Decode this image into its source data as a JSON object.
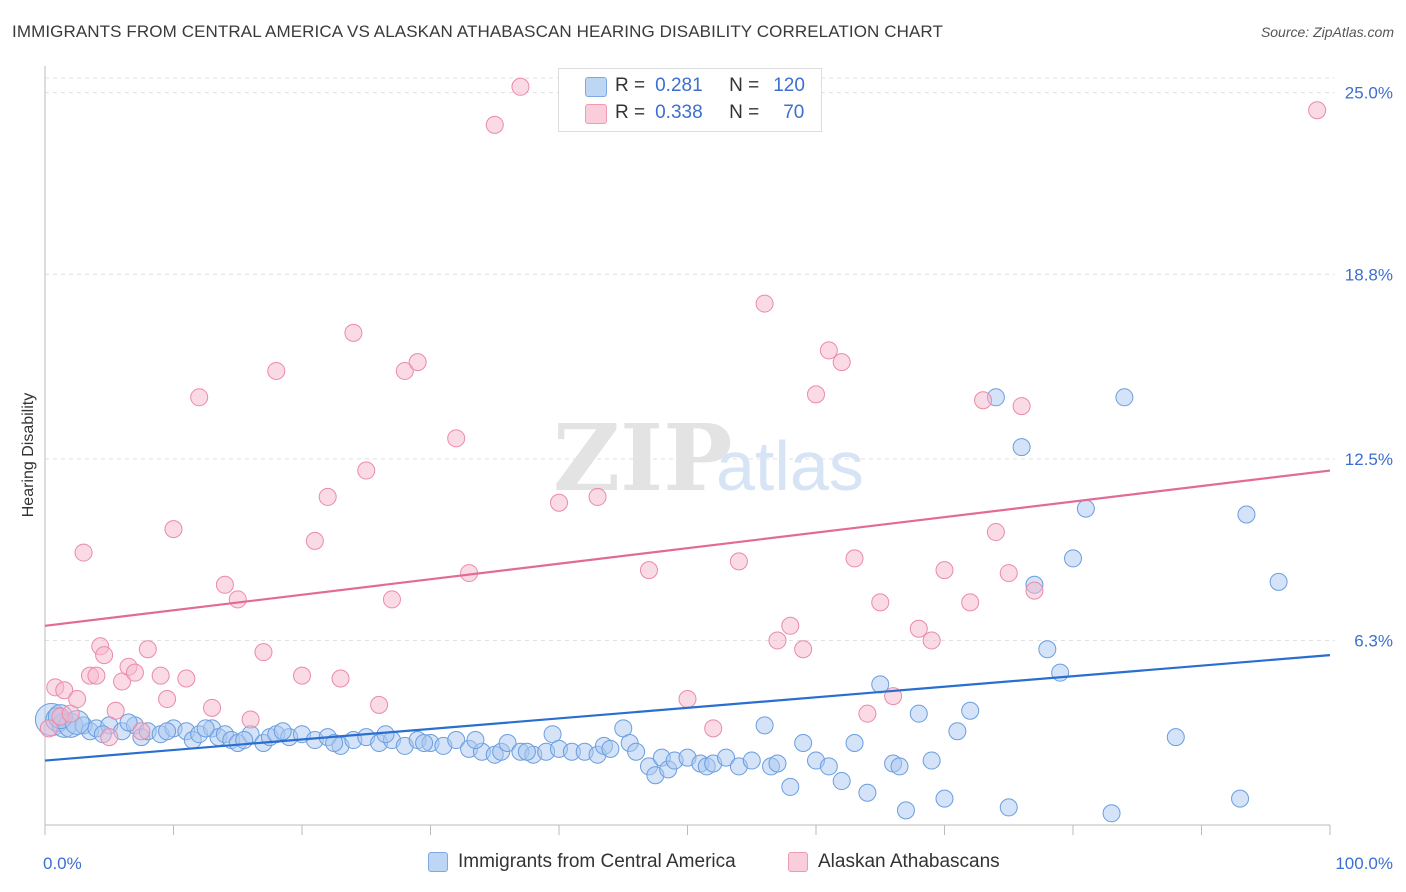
{
  "title": "IMMIGRANTS FROM CENTRAL AMERICA VS ALASKAN ATHABASCAN HEARING DISABILITY CORRELATION CHART",
  "source": "Source: ZipAtlas.com",
  "watermark": {
    "zip": "ZIP",
    "atlas": "atlas"
  },
  "legend_top": {
    "rows": [
      {
        "r_label": "R =",
        "r_value": "0.281",
        "n_label": "N =",
        "n_value": "120",
        "color": "#a9c8f0"
      },
      {
        "r_label": "R =",
        "r_value": "0.338",
        "n_label": "N =",
        "n_value": "70",
        "color": "#f6b8cb"
      }
    ]
  },
  "legend_bottom": [
    {
      "label": "Immigrants from Central America",
      "color": "#a9c8f0"
    },
    {
      "label": "Alaskan Athabascans",
      "color": "#f6b8cb"
    }
  ],
  "chart_data": {
    "type": "scatter",
    "title": "IMMIGRANTS FROM CENTRAL AMERICA VS ALASKAN ATHABASCAN HEARING DISABILITY CORRELATION CHART",
    "xlabel": "",
    "ylabel": "Hearing Disability",
    "xlim": [
      0,
      100
    ],
    "ylim": [
      0,
      25.5
    ],
    "x_tick_labels": [
      "0.0%",
      "100.0%"
    ],
    "y_ticks": [
      6.3,
      12.5,
      18.8,
      25.0
    ],
    "y_tick_labels": [
      "6.3%",
      "12.5%",
      "18.8%",
      "25.0%"
    ],
    "grid": "horizontal dashed",
    "legend_position": "top-center",
    "series": [
      {
        "name": "Immigrants from Central America",
        "color": "#a9c8f0",
        "edge": "#6a9ee0",
        "trend_color": "#2a6fcf",
        "trend": {
          "x0": 0,
          "y0": 2.2,
          "x1": 100,
          "y1": 5.8
        },
        "points": [
          [
            0.5,
            3.6
          ],
          [
            1,
            3.6
          ],
          [
            1.5,
            3.4
          ],
          [
            2,
            3.4
          ],
          [
            3,
            3.4
          ],
          [
            3.5,
            3.2
          ],
          [
            4,
            3.3
          ],
          [
            5,
            3.4
          ],
          [
            6,
            3.2
          ],
          [
            7,
            3.4
          ],
          [
            7.5,
            3.0
          ],
          [
            8,
            3.2
          ],
          [
            9,
            3.1
          ],
          [
            10,
            3.3
          ],
          [
            11,
            3.2
          ],
          [
            11.5,
            2.9
          ],
          [
            12,
            3.1
          ],
          [
            13,
            3.3
          ],
          [
            13.5,
            3.0
          ],
          [
            14,
            3.1
          ],
          [
            14.5,
            2.9
          ],
          [
            15,
            2.8
          ],
          [
            16,
            3.1
          ],
          [
            17,
            2.8
          ],
          [
            17.5,
            3.0
          ],
          [
            18,
            3.1
          ],
          [
            19,
            3.0
          ],
          [
            20,
            3.1
          ],
          [
            21,
            2.9
          ],
          [
            22,
            3.0
          ],
          [
            23,
            2.7
          ],
          [
            24,
            2.9
          ],
          [
            25,
            3.0
          ],
          [
            26,
            2.8
          ],
          [
            27,
            2.9
          ],
          [
            28,
            2.7
          ],
          [
            29,
            2.9
          ],
          [
            30,
            2.8
          ],
          [
            31,
            2.7
          ],
          [
            32,
            2.9
          ],
          [
            33,
            2.6
          ],
          [
            34,
            2.5
          ],
          [
            35,
            2.4
          ],
          [
            35.5,
            2.5
          ],
          [
            36,
            2.8
          ],
          [
            37,
            2.5
          ],
          [
            38,
            2.4
          ],
          [
            39,
            2.5
          ],
          [
            39.5,
            3.1
          ],
          [
            40,
            2.6
          ],
          [
            41,
            2.5
          ],
          [
            42,
            2.5
          ],
          [
            43,
            2.4
          ],
          [
            43.5,
            2.7
          ],
          [
            44,
            2.6
          ],
          [
            45,
            3.3
          ],
          [
            45.5,
            2.8
          ],
          [
            46,
            2.5
          ],
          [
            47,
            2.0
          ],
          [
            47.5,
            1.7
          ],
          [
            48,
            2.3
          ],
          [
            48.5,
            1.9
          ],
          [
            49,
            2.2
          ],
          [
            50,
            2.3
          ],
          [
            51,
            2.1
          ],
          [
            51.5,
            2.0
          ],
          [
            52,
            2.1
          ],
          [
            53,
            2.3
          ],
          [
            54,
            2.0
          ],
          [
            55,
            2.2
          ],
          [
            56,
            3.4
          ],
          [
            56.5,
            2.0
          ],
          [
            57,
            2.1
          ],
          [
            58,
            1.3
          ],
          [
            59,
            2.8
          ],
          [
            60,
            2.2
          ],
          [
            61,
            2.0
          ],
          [
            62,
            1.5
          ],
          [
            63,
            2.8
          ],
          [
            64,
            1.1
          ],
          [
            65,
            4.8
          ],
          [
            66,
            2.1
          ],
          [
            66.5,
            2.0
          ],
          [
            67,
            0.5
          ],
          [
            68,
            3.8
          ],
          [
            69,
            2.2
          ],
          [
            70,
            0.9
          ],
          [
            71,
            3.2
          ],
          [
            72,
            3.9
          ],
          [
            74,
            14.6
          ],
          [
            75,
            0.6
          ],
          [
            76,
            12.9
          ],
          [
            77,
            8.2
          ],
          [
            78,
            6.0
          ],
          [
            79,
            5.2
          ],
          [
            80,
            9.1
          ],
          [
            81,
            10.8
          ],
          [
            83,
            0.4
          ],
          [
            84,
            14.6
          ],
          [
            88,
            3.0
          ],
          [
            93,
            0.9
          ],
          [
            93.5,
            10.6
          ],
          [
            96,
            8.3
          ],
          [
            1.2,
            3.7
          ],
          [
            2.5,
            3.5
          ],
          [
            4.5,
            3.1
          ],
          [
            6.5,
            3.5
          ],
          [
            9.5,
            3.2
          ],
          [
            12.5,
            3.3
          ],
          [
            15.5,
            2.9
          ],
          [
            18.5,
            3.2
          ],
          [
            22.5,
            2.8
          ],
          [
            26.5,
            3.1
          ],
          [
            29.5,
            2.8
          ],
          [
            33.5,
            2.9
          ],
          [
            37.5,
            2.5
          ]
        ]
      },
      {
        "name": "Alaskan Athabascans",
        "color": "#f6b8cb",
        "edge": "#ec8aa8",
        "trend_color": "#e36b93",
        "trend": {
          "x0": 0,
          "y0": 6.8,
          "x1": 100,
          "y1": 12.1
        },
        "points": [
          [
            0.3,
            3.3
          ],
          [
            0.8,
            4.7
          ],
          [
            1.2,
            3.7
          ],
          [
            1.5,
            4.6
          ],
          [
            2,
            3.8
          ],
          [
            2.5,
            4.3
          ],
          [
            3,
            9.3
          ],
          [
            3.5,
            5.1
          ],
          [
            4,
            5.1
          ],
          [
            4.3,
            6.1
          ],
          [
            4.6,
            5.8
          ],
          [
            5,
            3.0
          ],
          [
            5.5,
            3.9
          ],
          [
            6,
            4.9
          ],
          [
            6.5,
            5.4
          ],
          [
            7,
            5.2
          ],
          [
            7.5,
            3.2
          ],
          [
            8,
            6.0
          ],
          [
            9,
            5.1
          ],
          [
            9.5,
            4.3
          ],
          [
            10,
            10.1
          ],
          [
            11,
            5.0
          ],
          [
            12,
            14.6
          ],
          [
            13,
            4.0
          ],
          [
            14,
            8.2
          ],
          [
            15,
            7.7
          ],
          [
            16,
            3.6
          ],
          [
            17,
            5.9
          ],
          [
            18,
            15.5
          ],
          [
            20,
            5.1
          ],
          [
            21,
            9.7
          ],
          [
            22,
            11.2
          ],
          [
            23,
            5.0
          ],
          [
            24,
            16.8
          ],
          [
            25,
            12.1
          ],
          [
            26,
            4.1
          ],
          [
            27,
            7.7
          ],
          [
            28,
            15.5
          ],
          [
            29,
            15.8
          ],
          [
            32,
            13.2
          ],
          [
            33,
            8.6
          ],
          [
            35,
            23.9
          ],
          [
            37,
            25.2
          ],
          [
            40,
            11.0
          ],
          [
            43,
            11.2
          ],
          [
            47,
            8.7
          ],
          [
            50,
            4.3
          ],
          [
            52,
            3.3
          ],
          [
            54,
            9.0
          ],
          [
            56,
            17.8
          ],
          [
            57,
            6.3
          ],
          [
            58,
            6.8
          ],
          [
            59,
            6.0
          ],
          [
            60,
            14.7
          ],
          [
            61,
            16.2
          ],
          [
            62,
            15.8
          ],
          [
            63,
            9.1
          ],
          [
            64,
            3.8
          ],
          [
            65,
            7.6
          ],
          [
            66,
            4.4
          ],
          [
            68,
            6.7
          ],
          [
            69,
            6.3
          ],
          [
            70,
            8.7
          ],
          [
            72,
            7.6
          ],
          [
            73,
            14.5
          ],
          [
            74,
            10.0
          ],
          [
            75,
            8.6
          ],
          [
            76,
            14.3
          ],
          [
            77,
            8.0
          ],
          [
            99,
            24.4
          ]
        ]
      }
    ]
  }
}
